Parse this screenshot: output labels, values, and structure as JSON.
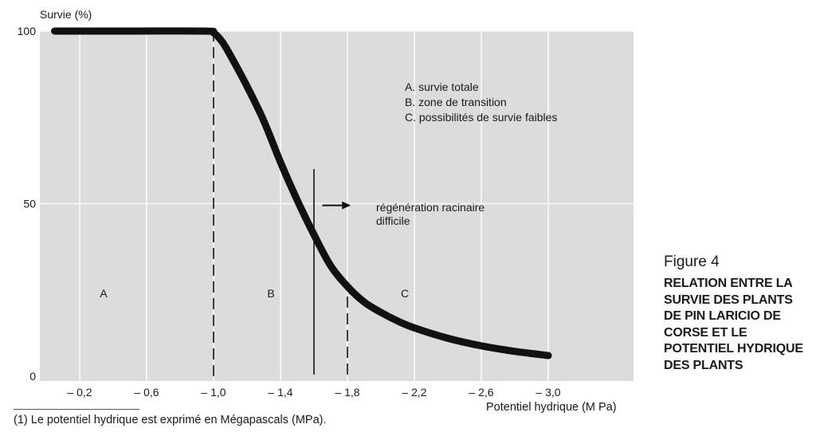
{
  "chart_data": {
    "type": "line",
    "ylabel": "Survie (%)",
    "xlabel": "Potentiel hydrique (M Pa)",
    "xlim": [
      -0.05,
      -3.2
    ],
    "ylim": [
      0,
      100
    ],
    "x_ticks": [
      -0.2,
      -0.6,
      -1.0,
      -1.4,
      -1.8,
      -2.2,
      -2.6,
      -3.0
    ],
    "x_tick_labels": [
      "– 0,2",
      "– 0,6",
      "– 1,0",
      "– 1,4",
      "– 1,8",
      "– 2,2",
      "– 2,6",
      "– 3,0"
    ],
    "y_ticks": [
      0,
      50,
      100
    ],
    "y_tick_labels": [
      "0",
      "50",
      "100"
    ],
    "grid": true,
    "series": [
      {
        "x": [
          -0.05,
          -0.5,
          -0.95,
          -1.0,
          -1.05,
          -1.1,
          -1.2,
          -1.3,
          -1.4,
          -1.5,
          -1.6,
          -1.7,
          -1.8,
          -1.9,
          -2.0,
          -2.1,
          -2.2,
          -2.4,
          -2.6,
          -2.8,
          -3.0
        ],
        "y": [
          100,
          100,
          100,
          99.5,
          97,
          93,
          84,
          74,
          62,
          51,
          41,
          32,
          26,
          21.5,
          18.5,
          16,
          14,
          11,
          8.8,
          7.2,
          6
        ]
      }
    ],
    "vlines": [
      {
        "x": -1.0,
        "style": "dashed"
      },
      {
        "x": -1.6,
        "style": "solid"
      },
      {
        "x": -1.8,
        "style": "dashed"
      }
    ],
    "zones": [
      {
        "label": "A",
        "x": -0.4,
        "y": 24
      },
      {
        "label": "B",
        "x": -1.4,
        "y": 24
      },
      {
        "label": "C",
        "x": -2.2,
        "y": 24
      }
    ],
    "legend": {
      "placement": "top-right",
      "items": [
        "A. survie totale",
        "B. zone de transition",
        "C. possibilités de survie faibles"
      ]
    },
    "annotation": {
      "text_lines": [
        "régénération racinaire",
        "difficile"
      ],
      "arrow_from_x": -1.65,
      "arrow_to_x": -1.82,
      "y": 49.5
    }
  },
  "caption": {
    "figure_number": "Figure 4",
    "title": "RELATION ENTRE LA\nSURVIE DES PLANTS\nDE PIN LARICIO DE\nCORSE ET LE\nPOTENTIEL HYDRIQUE\nDES PLANTS"
  },
  "footnote": "(1) Le potentiel hydrique est exprimé en Mégapascals (MPa).",
  "colors": {
    "plot_background": "#dcdcdc",
    "grid": "#f4f4f4",
    "curve": "#111111"
  }
}
